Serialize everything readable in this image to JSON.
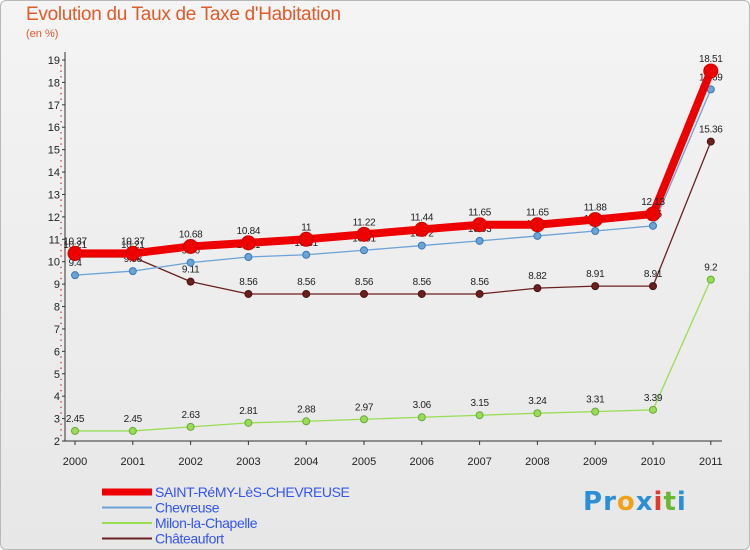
{
  "chart_data": {
    "type": "line",
    "title": "Evolution du Taux de Taxe d'Habitation",
    "subtitle": "(en %)",
    "xlabel": "",
    "ylabel": "(en %)",
    "ylim": [
      2,
      19
    ],
    "yticks": [
      2,
      3,
      4,
      5,
      6,
      7,
      8,
      9,
      10,
      11,
      12,
      13,
      14,
      15,
      16,
      17,
      18,
      19
    ],
    "categories": [
      "2000",
      "2001",
      "2002",
      "2003",
      "2004",
      "2005",
      "2006",
      "2007",
      "2008",
      "2009",
      "2010",
      "2011"
    ],
    "series": [
      {
        "name": "Châteaufort",
        "color": "#6b2020",
        "values": [
          10.21,
          10.21,
          9.11,
          8.56,
          8.56,
          8.56,
          8.56,
          8.56,
          8.82,
          8.91,
          8.91,
          15.36
        ],
        "labels": [
          "10.21",
          "10.21",
          "9.11",
          "8.56",
          "8.56",
          "8.56",
          "8.56",
          "8.56",
          "8.82",
          "8.91",
          "8.91",
          "15.36"
        ]
      },
      {
        "name": "Milon-la-Chapelle",
        "color": "#99dd55",
        "values": [
          2.45,
          2.45,
          2.63,
          2.81,
          2.88,
          2.97,
          3.06,
          3.15,
          3.24,
          3.31,
          3.39,
          9.2
        ],
        "labels": [
          "2.45",
          "2.45",
          "2.63",
          "2.81",
          "2.88",
          "2.97",
          "3.06",
          "3.15",
          "3.24",
          "3.31",
          "3.39",
          "9.2"
        ]
      },
      {
        "name": "Chevreuse",
        "color": "#6ba3d6",
        "values": [
          9.4,
          9.58,
          9.96,
          10.21,
          10.31,
          10.51,
          10.72,
          10.93,
          11.15,
          11.37,
          11.6,
          17.69
        ],
        "labels": [
          "9.4",
          "9.58",
          "9.96",
          "10.21",
          "10.31",
          "10.51",
          "10.72",
          "10.93",
          "11.15",
          "11.37",
          "11.6",
          "17.69"
        ]
      },
      {
        "name": "SAINT-RéMY-LèS-CHEVREUSE",
        "color": "#ee0000",
        "values": [
          10.37,
          10.37,
          10.68,
          10.84,
          11,
          11.22,
          11.44,
          11.65,
          11.65,
          11.88,
          12.13,
          18.51
        ],
        "labels": [
          "10.37",
          "10.37",
          "10.68",
          "10.84",
          "11",
          "11.22",
          "11.44",
          "11.65",
          "11.65",
          "11.88",
          "12.13",
          "18.51"
        ]
      }
    ],
    "legend": [
      {
        "name": "SAINT-RéMY-LèS-CHEVREUSE",
        "color": "#ee0000",
        "text_color": "#3355ee"
      },
      {
        "name": "Chevreuse",
        "color": "#6ba3d6",
        "text_color": "#3355ee"
      },
      {
        "name": "Milon-la-Chapelle",
        "color": "#99dd55",
        "text_color": "#3355ee"
      },
      {
        "name": "Châteaufort",
        "color": "#6b2020",
        "text_color": "#3355ee"
      }
    ],
    "legend_position": "bottom-left",
    "grid": false
  },
  "logo": {
    "letters": [
      "P",
      "r",
      "o",
      "x",
      "i",
      "t",
      "i"
    ],
    "colors": [
      "#2a8fd6",
      "#2a8fd6",
      "#f2a21a",
      "#2a8fd6",
      "#e23b2a",
      "#69b832",
      "#2a8fd6"
    ]
  }
}
